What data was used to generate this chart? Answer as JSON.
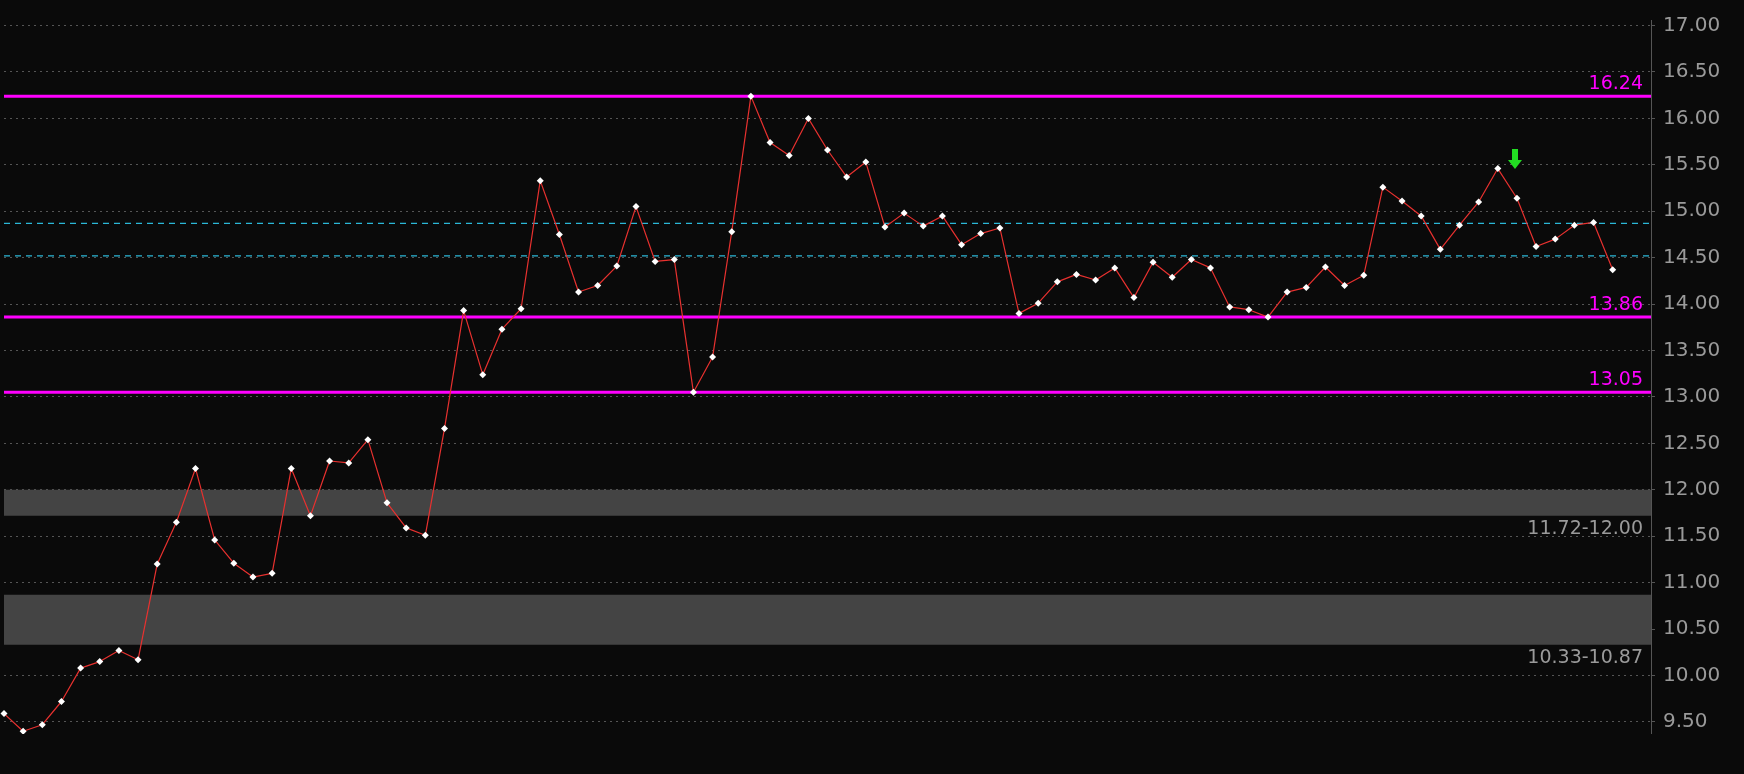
{
  "chart_data": {
    "type": "line",
    "categories": [
      null,
      null,
      null,
      null,
      null,
      null,
      null,
      null,
      null,
      null,
      null,
      null,
      null,
      null,
      null,
      null,
      null,
      null,
      null,
      null,
      null,
      null,
      null,
      null,
      null,
      null,
      null,
      null,
      null,
      null,
      null,
      null,
      null,
      null,
      null,
      null,
      null,
      null,
      null,
      null,
      null,
      null,
      null,
      null,
      null,
      null,
      null,
      null,
      null,
      null,
      null,
      null,
      null,
      null,
      null,
      null,
      null,
      null,
      null,
      null,
      null,
      null,
      null,
      null,
      null,
      null,
      null,
      null,
      null,
      null,
      null,
      null,
      null,
      null,
      null,
      null,
      null,
      null,
      null,
      null,
      null,
      null,
      null,
      null,
      null,
      null,
      null
    ],
    "series": [
      {
        "color": "#e8312f",
        "values": [
          9.59,
          9.4,
          9.47,
          9.72,
          10.08,
          10.15,
          10.27,
          10.17,
          11.2,
          11.65,
          12.23,
          11.46,
          11.21,
          11.06,
          11.1,
          12.23,
          11.72,
          12.31,
          12.29,
          12.54,
          11.86,
          11.59,
          11.51,
          12.66,
          13.93,
          13.24,
          13.73,
          13.95,
          15.33,
          14.75,
          14.13,
          14.2,
          14.41,
          15.05,
          14.46,
          14.48,
          13.05,
          13.43,
          14.78,
          16.24,
          15.74,
          15.6,
          16.0,
          15.66,
          15.37,
          15.53,
          14.83,
          14.98,
          14.84,
          14.95,
          14.64,
          14.76,
          14.82,
          13.9,
          14.01,
          14.24,
          14.32,
          14.26,
          14.39,
          14.07,
          14.45,
          14.29,
          14.48,
          14.39,
          13.97,
          13.94,
          13.86,
          14.13,
          14.18,
          14.4,
          14.2,
          14.31,
          15.26,
          15.11,
          14.95,
          14.59,
          14.85,
          15.1,
          15.46,
          15.14,
          14.62,
          14.7,
          14.85,
          14.88,
          14.37,
          null,
          null
        ]
      }
    ],
    "ylim": [
      9.37,
      17.06
    ],
    "yticks": [
      {
        "value": 9.5,
        "label": "9.50"
      },
      {
        "value": 10,
        "label": "10.00"
      },
      {
        "value": 10.5,
        "label": "10.50"
      },
      {
        "value": 11,
        "label": "11.00"
      },
      {
        "value": 11.5,
        "label": "11.50"
      },
      {
        "value": 12,
        "label": "12.00"
      },
      {
        "value": 12.5,
        "label": "12.50"
      },
      {
        "value": 13,
        "label": "13.00"
      },
      {
        "value": 13.5,
        "label": "13.50"
      },
      {
        "value": 14,
        "label": "14.00"
      },
      {
        "value": 14.5,
        "label": "14.50"
      },
      {
        "value": 15,
        "label": "15.00"
      },
      {
        "value": 15.5,
        "label": "15.50"
      },
      {
        "value": 16,
        "label": "16.00"
      },
      {
        "value": 16.5,
        "label": "16.50"
      },
      {
        "value": 17,
        "label": "17.00"
      }
    ],
    "grid": "y",
    "legend": false,
    "marker": "diamond",
    "line_style": "solid",
    "ref_lines": [
      {
        "axis": "y",
        "value": 16.24,
        "label": "16.24",
        "color": "#ff00ff"
      },
      {
        "axis": "y",
        "value": 13.05,
        "label": "13.05",
        "color": "#ff00ff"
      },
      {
        "axis": "y",
        "value": 13.86,
        "label": "13.86",
        "color": "#ff00ff"
      },
      {
        "axis": "y",
        "value": 14.87,
        "color": "#2bb8d8",
        "line_style": "dashed"
      },
      {
        "axis": "y",
        "value": 14.52,
        "color": "#2bb8d8",
        "line_style": "dashed"
      }
    ],
    "bands": [
      {
        "axis": "y",
        "from": 11.72,
        "to": 12.0,
        "label": "11.72-12.00",
        "color": "#444444"
      },
      {
        "axis": "y",
        "from": 10.33,
        "to": 10.87,
        "label": "10.33-10.87",
        "color": "#444444"
      }
    ]
  }
}
